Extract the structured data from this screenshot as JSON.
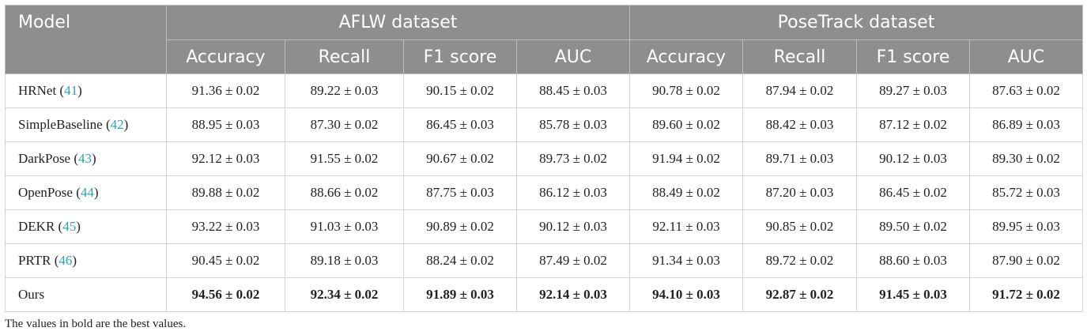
{
  "table": {
    "model_header": "Model",
    "groups": [
      "AFLW dataset",
      "PoseTrack dataset"
    ],
    "metrics": [
      "Accuracy",
      "Recall",
      "F1 score",
      "AUC"
    ],
    "rows": [
      {
        "name": "HRNet",
        "ref": "41",
        "values": [
          "91.36 ± 0.02",
          "89.22 ± 0.03",
          "90.15 ± 0.02",
          "88.45 ± 0.03",
          "90.78 ± 0.02",
          "87.94 ± 0.02",
          "89.27 ± 0.03",
          "87.63 ± 0.02"
        ]
      },
      {
        "name": "SimpleBaseline",
        "ref": "42",
        "values": [
          "88.95 ± 0.03",
          "87.30 ± 0.02",
          "86.45 ± 0.03",
          "85.78 ± 0.03",
          "89.60 ± 0.02",
          "88.42 ± 0.03",
          "87.12 ± 0.02",
          "86.89 ± 0.03"
        ]
      },
      {
        "name": "DarkPose",
        "ref": "43",
        "values": [
          "92.12 ± 0.03",
          "91.55 ± 0.02",
          "90.67 ± 0.02",
          "89.73 ± 0.02",
          "91.94 ± 0.02",
          "89.71 ± 0.03",
          "90.12 ± 0.03",
          "89.30 ± 0.02"
        ]
      },
      {
        "name": "OpenPose",
        "ref": "44",
        "values": [
          "89.88 ± 0.02",
          "88.66 ± 0.02",
          "87.75 ± 0.03",
          "86.12 ± 0.03",
          "88.49 ± 0.02",
          "87.20 ± 0.03",
          "86.45 ± 0.02",
          "85.72 ± 0.03"
        ]
      },
      {
        "name": "DEKR",
        "ref": "45",
        "values": [
          "93.22 ± 0.03",
          "91.03 ± 0.03",
          "90.89 ± 0.02",
          "90.12 ± 0.03",
          "92.11 ± 0.03",
          "90.85 ± 0.02",
          "89.50 ± 0.02",
          "89.95 ± 0.03"
        ]
      },
      {
        "name": "PRTR",
        "ref": "46",
        "values": [
          "90.45 ± 0.02",
          "89.18 ± 0.03",
          "88.24 ± 0.02",
          "87.49 ± 0.02",
          "91.34 ± 0.03",
          "89.72 ± 0.02",
          "88.60 ± 0.03",
          "87.90 ± 0.02"
        ]
      },
      {
        "name": "Ours",
        "ref": "",
        "values": [
          "94.56 ± 0.02",
          "92.34 ± 0.02",
          "91.89 ± 0.03",
          "92.14 ± 0.03",
          "94.10 ± 0.03",
          "92.87 ± 0.02",
          "91.45 ± 0.03",
          "91.72 ± 0.02"
        ]
      }
    ],
    "best_row": "Ours"
  },
  "footnote": "The values in bold are the best values.",
  "colors": {
    "header_bg": "#8e8e8e",
    "header_text": "#ffffff",
    "ref_link": "#2aa3b4",
    "border": "#d4d4d4"
  }
}
